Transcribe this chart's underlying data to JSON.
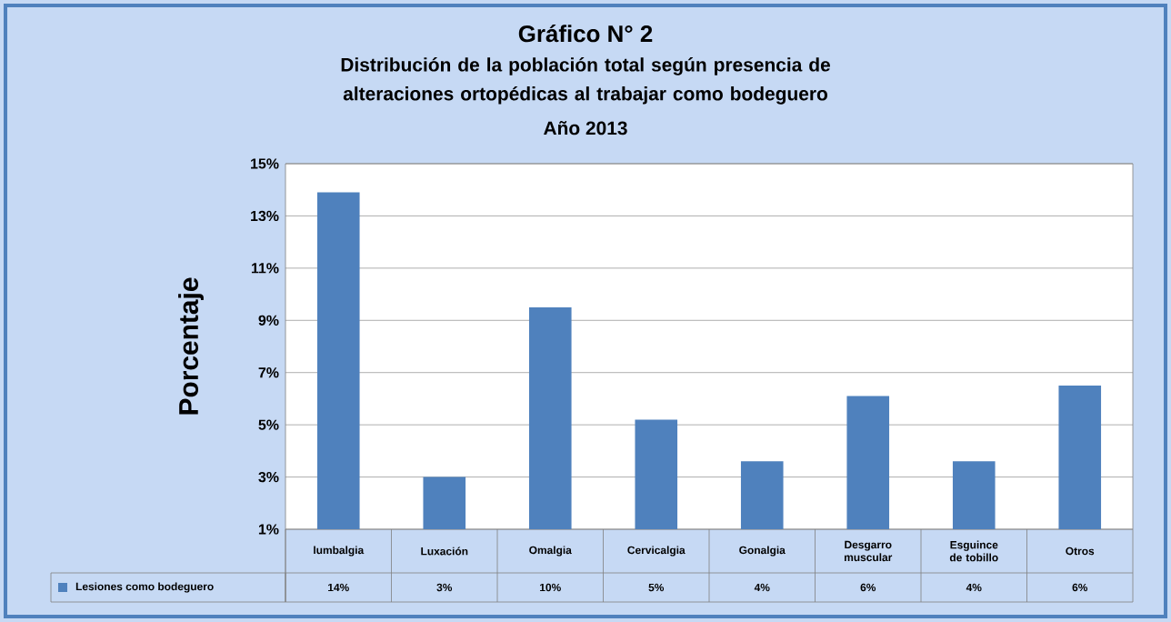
{
  "chart_data": {
    "type": "bar",
    "title": "Gráfico N° 2",
    "subtitle": "Distribución de la población total según presencia de alteraciones ortopédicas al trabajar como bodeguero",
    "ylabel": "Porcentaje",
    "annotations": [
      "Año 2013"
    ],
    "categories": [
      "lumbalgia",
      "Luxación",
      "Omalgia",
      "Cervicalgia",
      "Gonalgia",
      "Desgarro muscular",
      "Esguince de tobillo",
      "Otros"
    ],
    "series": [
      {
        "name": "Lesiones como bodeguero",
        "color": "#4f81bd",
        "values": [
          13.9,
          3.0,
          9.5,
          5.2,
          3.6,
          6.1,
          3.6,
          6.5
        ],
        "value_labels": [
          "14%",
          "3%",
          "10%",
          "5%",
          "4%",
          "6%",
          "4%",
          "6%"
        ]
      }
    ],
    "ylim": [
      1,
      15
    ],
    "yticks": [
      {
        "value": 1,
        "label": "1%"
      },
      {
        "value": 3,
        "label": "3%"
      },
      {
        "value": 5,
        "label": "5%"
      },
      {
        "value": 7,
        "label": "7%"
      },
      {
        "value": 9,
        "label": "9%"
      },
      {
        "value": 11,
        "label": "11%"
      },
      {
        "value": 13,
        "label": "13%"
      },
      {
        "value": 15,
        "label": "15%"
      }
    ],
    "grid": "y",
    "legend": "bottom"
  }
}
